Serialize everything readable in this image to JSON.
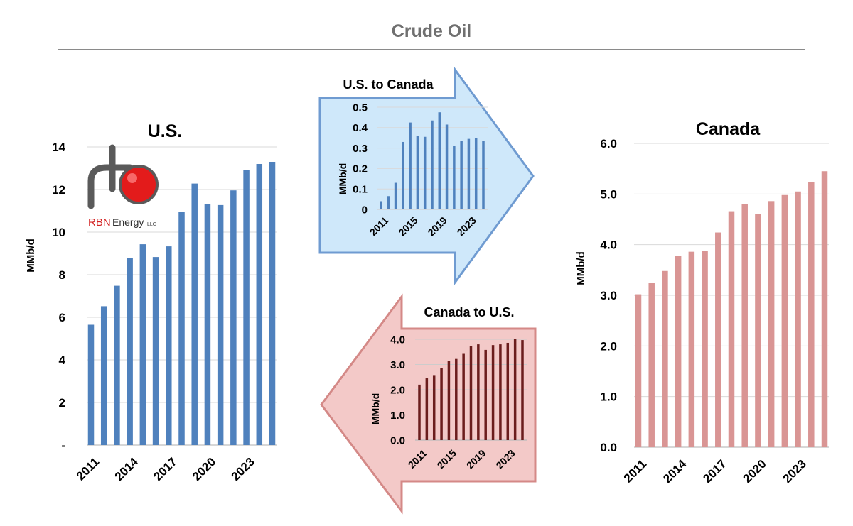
{
  "page_title": "Crude Oil",
  "colors": {
    "us": "#4f81bd",
    "canada": "#d99594",
    "canada_to_us": "#6b1d1d",
    "arrow_blue_fill": "#cfe8fa",
    "arrow_blue_stroke": "#6f9bd1",
    "arrow_red_fill": "#f3c9c8",
    "arrow_red_stroke": "#d48987"
  },
  "logo": {
    "text_main": "RBN",
    "text_sub": "Energy",
    "text_llc": "LLC",
    "icon": "rbn-logo-icon"
  },
  "chart_data": [
    {
      "id": "us",
      "type": "bar",
      "title": "U.S.",
      "ylabel": "MMb/d",
      "ylim": [
        0,
        14
      ],
      "yticks": [
        0,
        2,
        4,
        6,
        8,
        10,
        12,
        14
      ],
      "ytick_labels": [
        "-",
        "2",
        "4",
        "6",
        "8",
        "10",
        "12",
        "14"
      ],
      "x": [
        2011,
        2012,
        2013,
        2014,
        2015,
        2016,
        2017,
        2018,
        2019,
        2020,
        2021,
        2022,
        2023,
        2024,
        2025
      ],
      "xtick_labels": [
        "2011",
        "2014",
        "2017",
        "2020",
        "2023"
      ],
      "values": [
        5.65,
        6.52,
        7.48,
        8.77,
        9.43,
        8.83,
        9.33,
        10.95,
        12.28,
        11.31,
        11.27,
        11.96,
        12.93,
        13.2,
        13.3
      ],
      "color": "#4f81bd"
    },
    {
      "id": "us_to_canada",
      "type": "bar",
      "title": "U.S. to Canada",
      "ylabel": "MMb/d",
      "ylim": [
        0,
        0.5
      ],
      "yticks": [
        0,
        0.1,
        0.2,
        0.3,
        0.4,
        0.5
      ],
      "ytick_labels": [
        "0",
        "0.1",
        "0.2",
        "0.3",
        "0.4",
        "0.5"
      ],
      "x": [
        2011,
        2012,
        2013,
        2014,
        2015,
        2016,
        2017,
        2018,
        2019,
        2020,
        2021,
        2022,
        2023,
        2024,
        2025
      ],
      "xtick_labels": [
        "2011",
        "2015",
        "2019",
        "2023"
      ],
      "values": [
        0.04,
        0.065,
        0.13,
        0.33,
        0.425,
        0.36,
        0.355,
        0.435,
        0.475,
        0.415,
        0.31,
        0.335,
        0.345,
        0.35,
        0.335
      ],
      "color": "#4f81bd"
    },
    {
      "id": "canada_to_us",
      "type": "bar",
      "title": "Canada to U.S.",
      "ylabel": "MMb/d",
      "ylim": [
        0,
        4
      ],
      "yticks": [
        0,
        1,
        2,
        3,
        4
      ],
      "ytick_labels": [
        "0.0",
        "1.0",
        "2.0",
        "3.0",
        "4.0"
      ],
      "x": [
        2011,
        2012,
        2013,
        2014,
        2015,
        2016,
        2017,
        2018,
        2019,
        2020,
        2021,
        2022,
        2023,
        2024,
        2025
      ],
      "xtick_labels": [
        "2011",
        "2015",
        "2019",
        "2023"
      ],
      "values": [
        2.2,
        2.45,
        2.58,
        2.85,
        3.15,
        3.22,
        3.45,
        3.72,
        3.8,
        3.58,
        3.77,
        3.8,
        3.86,
        4.0,
        3.97
      ],
      "color": "#6b1d1d"
    },
    {
      "id": "canada",
      "type": "bar",
      "title": "Canada",
      "ylabel": "MMb/d",
      "ylim": [
        0,
        6
      ],
      "yticks": [
        0,
        1,
        2,
        3,
        4,
        5,
        6
      ],
      "ytick_labels": [
        "0.0",
        "1.0",
        "2.0",
        "3.0",
        "4.0",
        "5.0",
        "6.0"
      ],
      "x": [
        2011,
        2012,
        2013,
        2014,
        2015,
        2016,
        2017,
        2018,
        2019,
        2020,
        2021,
        2022,
        2023,
        2024,
        2025
      ],
      "xtick_labels": [
        "2011",
        "2014",
        "2017",
        "2020",
        "2023"
      ],
      "values": [
        3.02,
        3.25,
        3.48,
        3.78,
        3.86,
        3.88,
        4.24,
        4.66,
        4.8,
        4.6,
        4.86,
        4.98,
        5.05,
        5.24,
        5.45
      ],
      "color": "#d99594"
    }
  ]
}
